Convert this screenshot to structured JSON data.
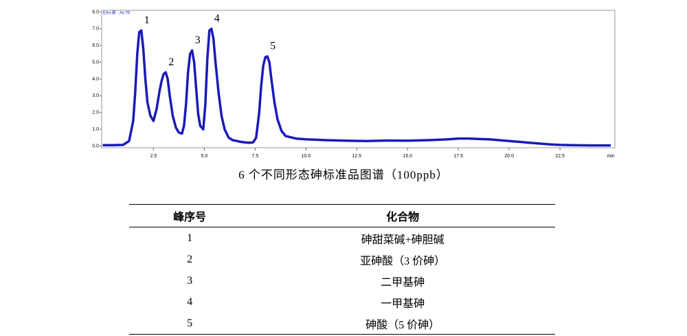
{
  "chart_data": {
    "type": "line",
    "x": [
      0,
      0.5,
      1.0,
      1.3,
      1.5,
      1.6,
      1.7,
      1.8,
      1.9,
      2.0,
      2.1,
      2.2,
      2.35,
      2.5,
      2.65,
      2.8,
      2.9,
      3.0,
      3.1,
      3.2,
      3.3,
      3.45,
      3.6,
      3.75,
      3.9,
      4.0,
      4.1,
      4.2,
      4.3,
      4.4,
      4.5,
      4.6,
      4.7,
      4.8,
      4.95,
      5.05,
      5.15,
      5.25,
      5.35,
      5.45,
      5.55,
      5.7,
      5.85,
      6.0,
      6.2,
      6.4,
      6.6,
      6.8,
      7.0,
      7.2,
      7.4,
      7.55,
      7.7,
      7.8,
      7.9,
      8.0,
      8.1,
      8.2,
      8.3,
      8.45,
      8.6,
      8.8,
      9.0,
      9.5,
      10,
      11,
      12,
      13,
      14,
      15,
      16,
      17,
      17.5,
      18,
      18.5,
      19,
      20,
      21,
      22,
      22.5,
      23,
      24,
      25
    ],
    "series": [
      {
        "name": "EAs-新 : As:75",
        "color": "#1a1ab8",
        "values": [
          0.05,
          0.05,
          0.07,
          0.3,
          1.5,
          3.2,
          5.5,
          6.8,
          6.9,
          5.8,
          4.0,
          2.6,
          1.8,
          1.5,
          2.2,
          3.3,
          3.9,
          4.3,
          4.4,
          4.0,
          3.0,
          1.8,
          1.1,
          0.8,
          0.75,
          1.2,
          2.5,
          4.4,
          5.5,
          5.7,
          5.0,
          3.4,
          1.9,
          1.2,
          1.0,
          2.5,
          5.2,
          6.9,
          7.0,
          6.4,
          5.0,
          3.2,
          1.8,
          1.0,
          0.5,
          0.35,
          0.3,
          0.25,
          0.22,
          0.2,
          0.22,
          0.5,
          2.0,
          3.6,
          4.8,
          5.3,
          5.35,
          5.0,
          4.0,
          2.6,
          1.6,
          0.9,
          0.6,
          0.45,
          0.4,
          0.35,
          0.32,
          0.3,
          0.33,
          0.32,
          0.35,
          0.4,
          0.45,
          0.45,
          0.42,
          0.4,
          0.3,
          0.2,
          0.1,
          0.07,
          0.05,
          0.04,
          0.04
        ]
      }
    ],
    "xlim": [
      -0.05,
      25.2
    ],
    "ylim": [
      -0.1,
      8.1
    ],
    "xticks": [
      2.5,
      {
        "value": 5,
        "label": "5.0"
      },
      7.5,
      {
        "value": 10,
        "label": "10.0"
      },
      12.5,
      {
        "value": 15,
        "label": "15.0"
      },
      17.5,
      {
        "value": 20,
        "label": "20.0"
      },
      22.5
    ],
    "yticks": [
      {
        "value": 0,
        "label": "0.0"
      },
      {
        "value": 1,
        "label": "1.0"
      },
      {
        "value": 2,
        "label": "2.0"
      },
      {
        "value": 3,
        "label": "3.0"
      },
      {
        "value": 4,
        "label": "4.0"
      },
      {
        "value": 5,
        "label": "5.0"
      },
      {
        "value": 6,
        "label": "6.0"
      },
      {
        "value": 7,
        "label": "7.0"
      },
      {
        "value": 8,
        "label": "8.0"
      }
    ],
    "x_label": "min",
    "grid": false,
    "annotations": [
      {
        "text": "1",
        "x": 1.9,
        "y": 6.9
      },
      {
        "text": "2",
        "x": 3.1,
        "y": 4.4
      },
      {
        "text": "3",
        "x": 4.4,
        "y": 5.7
      },
      {
        "text": "4",
        "x": 5.35,
        "y": 7.0
      },
      {
        "text": "5",
        "x": 8.1,
        "y": 5.35
      }
    ]
  },
  "caption": "6 个不同形态砷标准品图谱（100ppb）",
  "table": {
    "header": [
      "峰序号",
      "化合物"
    ],
    "rows": [
      [
        "1",
        "砷甜菜碱+砷胆碱"
      ],
      [
        "2",
        "亚砷酸（3 价砷）"
      ],
      [
        "3",
        "二甲基砷"
      ],
      [
        "4",
        "一甲基砷"
      ],
      [
        "5",
        "砷酸（5 价砷）"
      ]
    ]
  }
}
